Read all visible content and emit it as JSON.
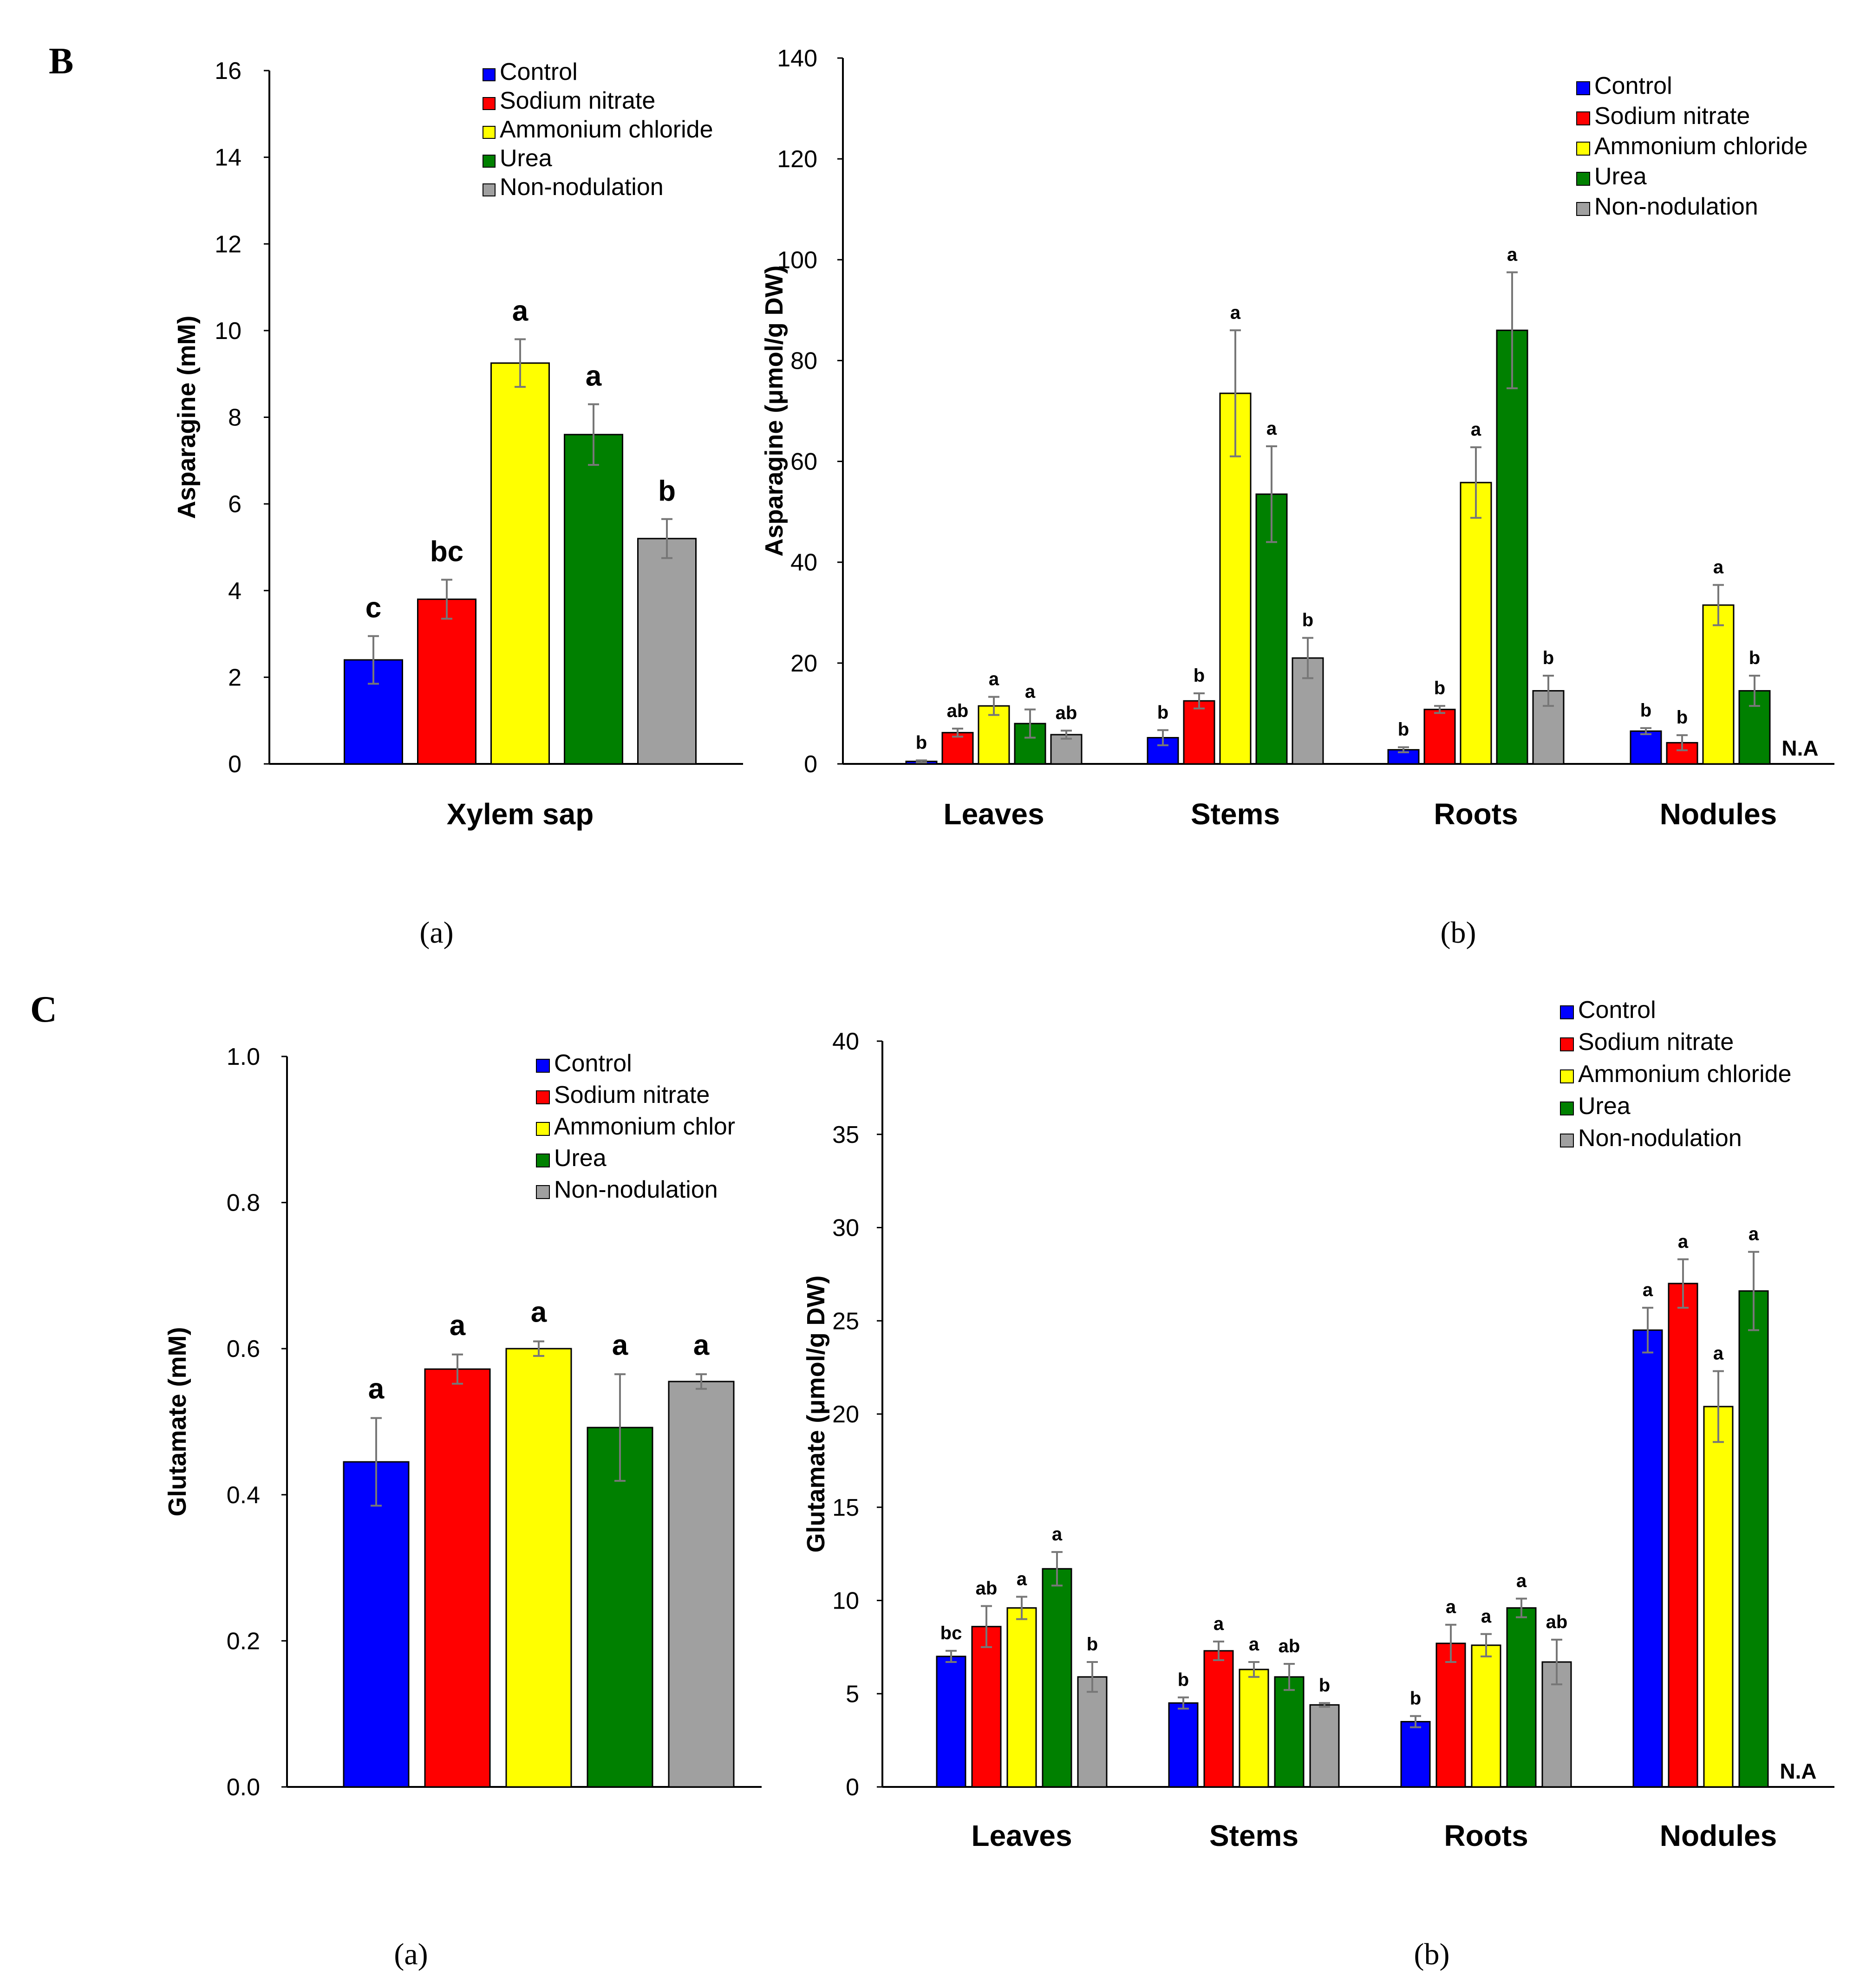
{
  "figure": {
    "panel_B": "B",
    "panel_C": "C"
  },
  "chart_data": [
    {
      "id": "B-a",
      "type": "bar",
      "panel": "B",
      "caption": "(a)",
      "title": "",
      "xlabel": "Xylem sap",
      "ylabel": "Asparagine (mM)",
      "ylim": [
        0,
        16
      ],
      "yticks": [
        0,
        2,
        4,
        6,
        8,
        10,
        12,
        14,
        16
      ],
      "ytick_labels": [
        "0",
        "2",
        "4",
        "6",
        "8",
        "10",
        "12",
        "14",
        "16"
      ],
      "categories": [
        "Xylem sap"
      ],
      "legend": [
        "Control",
        "Sodium nitrate",
        "Ammonium chloride",
        "Urea",
        "Non-nodulation"
      ],
      "legend_position": "top-right",
      "series": [
        {
          "name": "Control",
          "color": "#0000ff",
          "values": [
            2.4
          ],
          "errors": [
            0.55
          ],
          "labels": [
            "c"
          ]
        },
        {
          "name": "Sodium nitrate",
          "color": "#ff0000",
          "values": [
            3.8
          ],
          "errors": [
            0.45
          ],
          "labels": [
            "bc"
          ]
        },
        {
          "name": "Ammonium chloride",
          "color": "#ffff00",
          "values": [
            9.25
          ],
          "errors": [
            0.55
          ],
          "labels": [
            "a"
          ]
        },
        {
          "name": "Urea",
          "color": "#008000",
          "values": [
            7.6
          ],
          "errors": [
            0.7
          ],
          "labels": [
            "a"
          ]
        },
        {
          "name": "Non-nodulation",
          "color": "#a0a0a0",
          "values": [
            5.2
          ],
          "errors": [
            0.45
          ],
          "labels": [
            "b"
          ]
        }
      ]
    },
    {
      "id": "B-b",
      "type": "bar",
      "panel": "B",
      "caption": "(b)",
      "title": "",
      "xlabel": "",
      "ylabel": "Asparagine (μmol/g DW)",
      "ylim": [
        0,
        140
      ],
      "yticks": [
        0,
        20,
        40,
        60,
        80,
        100,
        120,
        140
      ],
      "ytick_labels": [
        "0",
        "20",
        "40",
        "60",
        "80",
        "100",
        "120",
        "140"
      ],
      "categories": [
        "Leaves",
        "Stems",
        "Roots",
        "Nodules"
      ],
      "legend": [
        "Control",
        "Sodium nitrate",
        "Ammonium chloride",
        "Urea",
        "Non-nodulation"
      ],
      "legend_position": "top-right",
      "na_label": "N.A",
      "series": [
        {
          "name": "Control",
          "color": "#0000ff",
          "values": [
            0.5,
            5.2,
            2.8,
            6.5
          ],
          "errors": [
            0.2,
            1.5,
            0.5,
            0.6
          ],
          "labels": [
            "b",
            "b",
            "b",
            "b"
          ]
        },
        {
          "name": "Sodium nitrate",
          "color": "#ff0000",
          "values": [
            6.2,
            12.5,
            10.8,
            4.2
          ],
          "errors": [
            0.8,
            1.5,
            0.7,
            1.5
          ],
          "labels": [
            "ab",
            "b",
            "b",
            "b"
          ]
        },
        {
          "name": "Ammonium chloride",
          "color": "#ffff00",
          "values": [
            11.5,
            73.5,
            55.8,
            31.5
          ],
          "errors": [
            1.8,
            12.5,
            7.0,
            4.0
          ],
          "labels": [
            "a",
            "a",
            "a",
            "a"
          ]
        },
        {
          "name": "Urea",
          "color": "#008000",
          "values": [
            8.0,
            53.5,
            86.0,
            14.5
          ],
          "errors": [
            2.8,
            9.5,
            11.5,
            3.0
          ],
          "labels": [
            "a",
            "a",
            "a",
            "b"
          ]
        },
        {
          "name": "Non-nodulation",
          "color": "#a0a0a0",
          "values": [
            5.8,
            21.0,
            14.5,
            null
          ],
          "errors": [
            0.8,
            4.0,
            3.0,
            null
          ],
          "labels": [
            "ab",
            "b",
            "b",
            ""
          ]
        }
      ]
    },
    {
      "id": "C-a",
      "type": "bar",
      "panel": "C",
      "caption": "(a)",
      "title": "",
      "xlabel": "",
      "ylabel": "Glutamate (mM)",
      "ylim": [
        0,
        1.0
      ],
      "yticks": [
        0,
        0.2,
        0.4,
        0.6,
        0.8,
        1.0
      ],
      "ytick_labels": [
        "0.0",
        "0.2",
        "0.4",
        "0.6",
        "0.8",
        "1.0"
      ],
      "categories": [
        ""
      ],
      "legend": [
        "Control",
        "Sodium nitrate",
        "Ammonium chlor",
        "Urea",
        "Non-nodulation"
      ],
      "legend_position": "top-right",
      "series": [
        {
          "name": "Control",
          "color": "#0000ff",
          "values": [
            0.445
          ],
          "errors": [
            0.06
          ],
          "labels": [
            "a"
          ]
        },
        {
          "name": "Sodium nitrate",
          "color": "#ff0000",
          "values": [
            0.572
          ],
          "errors": [
            0.02
          ],
          "labels": [
            "a"
          ]
        },
        {
          "name": "Ammonium chloride",
          "color": "#ffff00",
          "values": [
            0.6
          ],
          "errors": [
            0.01
          ],
          "labels": [
            "a"
          ]
        },
        {
          "name": "Urea",
          "color": "#008000",
          "values": [
            0.492
          ],
          "errors": [
            0.073
          ],
          "labels": [
            "a"
          ]
        },
        {
          "name": "Non-nodulation",
          "color": "#a0a0a0",
          "values": [
            0.555
          ],
          "errors": [
            0.01
          ],
          "labels": [
            "a"
          ]
        }
      ]
    },
    {
      "id": "C-b",
      "type": "bar",
      "panel": "C",
      "caption": "(b)",
      "title": "",
      "xlabel": "",
      "ylabel": "Glutamate (μmol/g DW)",
      "ylim": [
        0,
        40
      ],
      "yticks": [
        0,
        5,
        10,
        15,
        20,
        25,
        30,
        35,
        40
      ],
      "ytick_labels": [
        "0",
        "5",
        "10",
        "15",
        "20",
        "25",
        "30",
        "35",
        "40"
      ],
      "categories": [
        "Leaves",
        "Stems",
        "Roots",
        "Nodules"
      ],
      "legend": [
        "Control",
        "Sodium nitrate",
        "Ammonium chloride",
        "Urea",
        "Non-nodulation"
      ],
      "legend_position": "top-right",
      "na_label": "N.A",
      "series": [
        {
          "name": "Control",
          "color": "#0000ff",
          "values": [
            7.0,
            4.5,
            3.5,
            24.5
          ],
          "errors": [
            0.3,
            0.3,
            0.3,
            1.2
          ],
          "labels": [
            "bc",
            "b",
            "b",
            "a"
          ]
        },
        {
          "name": "Sodium nitrate",
          "color": "#ff0000",
          "values": [
            8.6,
            7.3,
            7.7,
            27.0
          ],
          "errors": [
            1.1,
            0.5,
            1.0,
            1.3
          ],
          "labels": [
            "ab",
            "a",
            "a",
            "a"
          ]
        },
        {
          "name": "Ammonium chloride",
          "color": "#ffff00",
          "values": [
            9.6,
            6.3,
            7.6,
            20.4
          ],
          "errors": [
            0.6,
            0.4,
            0.6,
            1.9
          ],
          "labels": [
            "a",
            "a",
            "a",
            "a"
          ]
        },
        {
          "name": "Urea",
          "color": "#008000",
          "values": [
            11.7,
            5.9,
            9.6,
            26.6
          ],
          "errors": [
            0.9,
            0.7,
            0.5,
            2.1
          ],
          "labels": [
            "a",
            "ab",
            "a",
            "a"
          ]
        },
        {
          "name": "Non-nodulation",
          "color": "#a0a0a0",
          "values": [
            5.9,
            4.4,
            6.7,
            null
          ],
          "errors": [
            0.8,
            0.1,
            1.2,
            null
          ],
          "labels": [
            "b",
            "b",
            "ab",
            ""
          ]
        }
      ]
    }
  ]
}
